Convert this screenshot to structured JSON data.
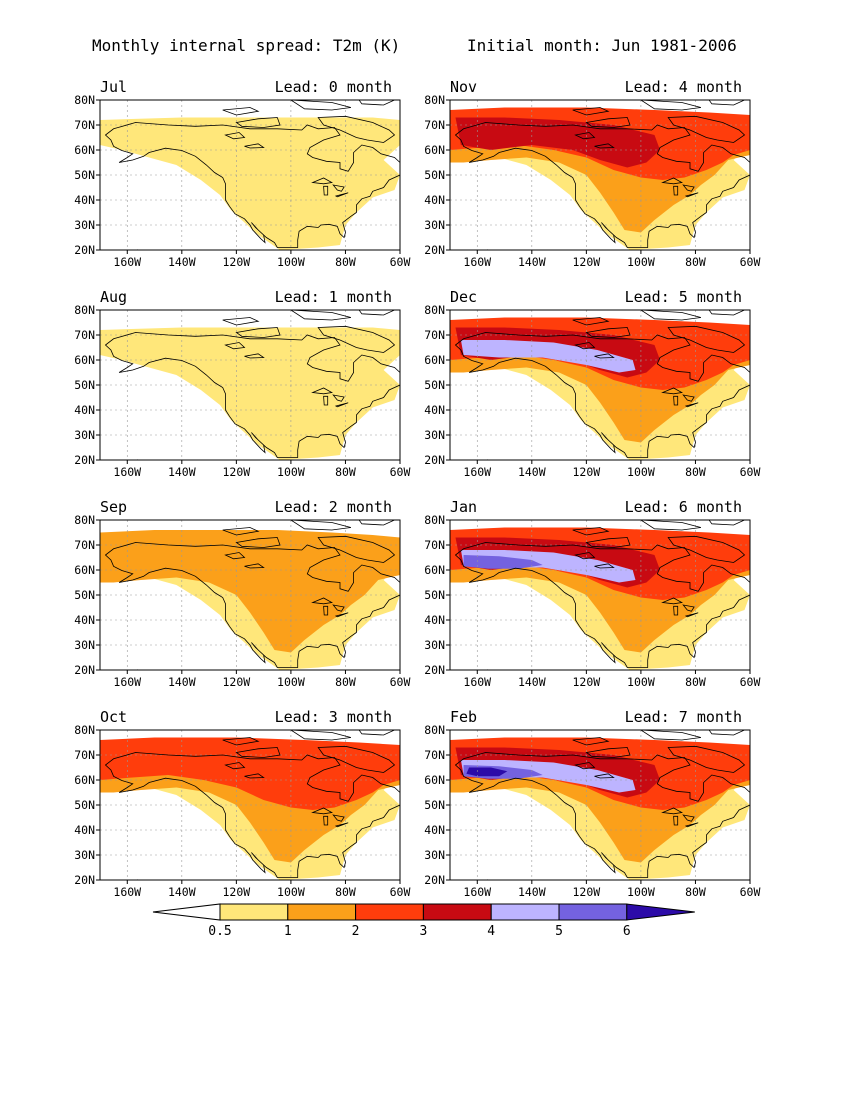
{
  "header": {
    "title": "Monthly internal spread: T2m (K)",
    "subtitle": "Initial month: Jun 1981-2006"
  },
  "colors": {
    "lt_0_5": "#ffffff",
    "c_0_5_1": "#ffe77a",
    "c_1_2": "#fba01a",
    "c_2_3": "#ff3d0c",
    "c_3_4": "#c80a12",
    "c_4_5": "#bdb4ff",
    "c_5_6": "#7462e0",
    "gt_6": "#2c0ba8",
    "coastline": "#000000",
    "grid": "#999999"
  },
  "axes": {
    "lat_labels": [
      "80N",
      "70N",
      "60N",
      "50N",
      "40N",
      "30N",
      "20N"
    ],
    "lon_labels": [
      "160W",
      "140W",
      "120W",
      "100W",
      "80W",
      "60W"
    ]
  },
  "panels": [
    {
      "month": "Jul",
      "lead": "Lead: 0 month",
      "max_level": 1
    },
    {
      "month": "Nov",
      "lead": "Lead: 4 month",
      "max_level": 4
    },
    {
      "month": "Aug",
      "lead": "Lead: 1 month",
      "max_level": 1
    },
    {
      "month": "Dec",
      "lead": "Lead: 5 month",
      "max_level": 5
    },
    {
      "month": "Sep",
      "lead": "Lead: 2 month",
      "max_level": 2
    },
    {
      "month": "Jan",
      "lead": "Lead: 6 month",
      "max_level": 6
    },
    {
      "month": "Oct",
      "lead": "Lead: 3 month",
      "max_level": 3
    },
    {
      "month": "Feb",
      "lead": "Lead: 7 month",
      "max_level": 7
    }
  ],
  "colorbar": {
    "levels": [
      "0.5",
      "1",
      "2",
      "3",
      "4",
      "5",
      "6"
    ]
  }
}
